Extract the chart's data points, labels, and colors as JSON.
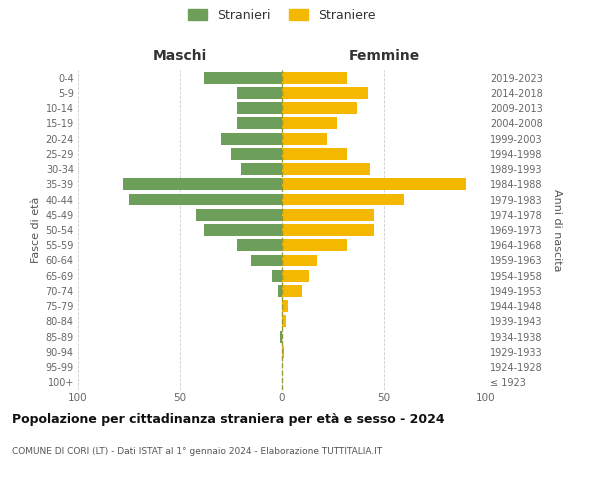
{
  "age_groups": [
    "100+",
    "95-99",
    "90-94",
    "85-89",
    "80-84",
    "75-79",
    "70-74",
    "65-69",
    "60-64",
    "55-59",
    "50-54",
    "45-49",
    "40-44",
    "35-39",
    "30-34",
    "25-29",
    "20-24",
    "15-19",
    "10-14",
    "5-9",
    "0-4"
  ],
  "birth_years": [
    "≤ 1923",
    "1924-1928",
    "1929-1933",
    "1934-1938",
    "1939-1943",
    "1944-1948",
    "1949-1953",
    "1954-1958",
    "1959-1963",
    "1964-1968",
    "1969-1973",
    "1974-1978",
    "1979-1983",
    "1984-1988",
    "1989-1993",
    "1994-1998",
    "1999-2003",
    "2004-2008",
    "2009-2013",
    "2014-2018",
    "2019-2023"
  ],
  "males": [
    0,
    0,
    0,
    1,
    0,
    0,
    2,
    5,
    15,
    22,
    38,
    42,
    75,
    78,
    20,
    25,
    30,
    22,
    22,
    22,
    38
  ],
  "females": [
    0,
    0,
    1,
    0,
    2,
    3,
    10,
    13,
    17,
    32,
    45,
    45,
    60,
    90,
    43,
    32,
    22,
    27,
    37,
    42,
    32
  ],
  "male_color": "#6d9e5a",
  "female_color": "#f5b800",
  "grid_color": "#cccccc",
  "background_color": "#ffffff",
  "title": "Popolazione per cittadinanza straniera per età e sesso - 2024",
  "subtitle": "COMUNE DI CORI (LT) - Dati ISTAT al 1° gennaio 2024 - Elaborazione TUTTITALIA.IT",
  "header_left": "Maschi",
  "header_right": "Femmine",
  "ylabel_left": "Fasce di età",
  "ylabel_right": "Anni di nascita",
  "legend_males": "Stranieri",
  "legend_females": "Straniere",
  "xlim": 100
}
